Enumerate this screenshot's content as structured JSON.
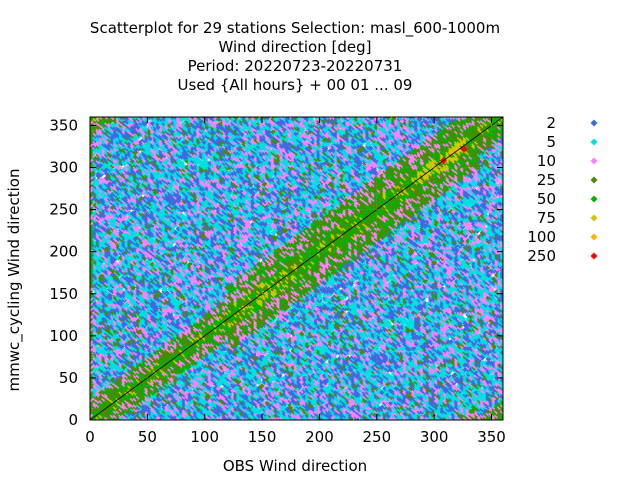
{
  "chart_data": {
    "type": "scatter",
    "title_lines": [
      "Scatterplot for   29 stations Selection: masl_600-1000m",
      "Wind direction [deg]",
      "Period: 20220723-20220731",
      "Used {All hours} + 00 01 ... 09"
    ],
    "xlabel": "OBS Wind direction",
    "ylabel": "mmwc_cycling Wind direction",
    "xlim": [
      0,
      360
    ],
    "ylim": [
      0,
      360
    ],
    "xticks": [
      "0",
      "50",
      "100",
      "150",
      "200",
      "250",
      "300",
      "350"
    ],
    "yticks": [
      "0",
      "50",
      "100",
      "150",
      "200",
      "250",
      "300",
      "350"
    ],
    "grid": true,
    "legend_placement": "right",
    "legend": [
      {
        "label": "2",
        "color": "#4169e1"
      },
      {
        "label": "5",
        "color": "#00e0e0"
      },
      {
        "label": "10",
        "color": "#ff80ff"
      },
      {
        "label": "25",
        "color": "#4b8b00"
      },
      {
        "label": "50",
        "color": "#00b400"
      },
      {
        "label": "75",
        "color": "#d0c800"
      },
      {
        "label": "100",
        "color": "#ffb400"
      },
      {
        "label": "250",
        "color": "#ff0000"
      }
    ],
    "reference_line": "diagonal y = x",
    "points_note": "dense 2D histogram of wind-direction pairs; counts per bin coded by legend class",
    "approx_points": [
      {
        "x": 308,
        "y": 308,
        "class": "250"
      },
      {
        "x": 326,
        "y": 322,
        "class": "250"
      },
      {
        "x": 315,
        "y": 318,
        "class": "100"
      },
      {
        "x": 300,
        "y": 300,
        "class": "75"
      },
      {
        "x": 160,
        "y": 150,
        "class": "75"
      },
      {
        "x": 150,
        "y": 160,
        "class": "75"
      }
    ]
  }
}
